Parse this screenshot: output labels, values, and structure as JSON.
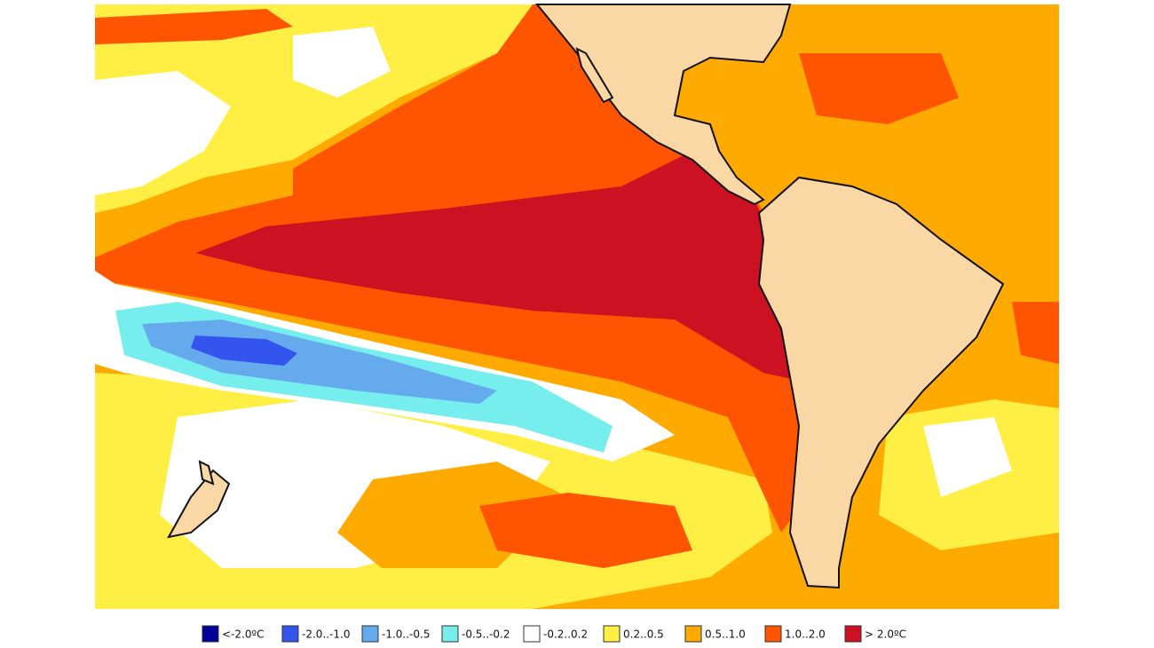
{
  "legend": {
    "items": [
      {
        "label": "<-2.0ºC",
        "color": "#000099"
      },
      {
        "label": "-2.0..-1.0",
        "color": "#3355ee"
      },
      {
        "label": "-1.0..-0.5",
        "color": "#66aaee"
      },
      {
        "label": "-0.5..-0.2",
        "color": "#77eeee"
      },
      {
        "label": "-0.2..0.2",
        "color": "#ffffff"
      },
      {
        "label": "0.2..0.5",
        "color": "#ffee44"
      },
      {
        "label": "0.5..1.0",
        "color": "#ffaa00"
      },
      {
        "label": "1.0..2.0",
        "color": "#ff5500"
      },
      {
        "label": "> 2.0ºC",
        "color": "#cc1122"
      }
    ]
  }
}
